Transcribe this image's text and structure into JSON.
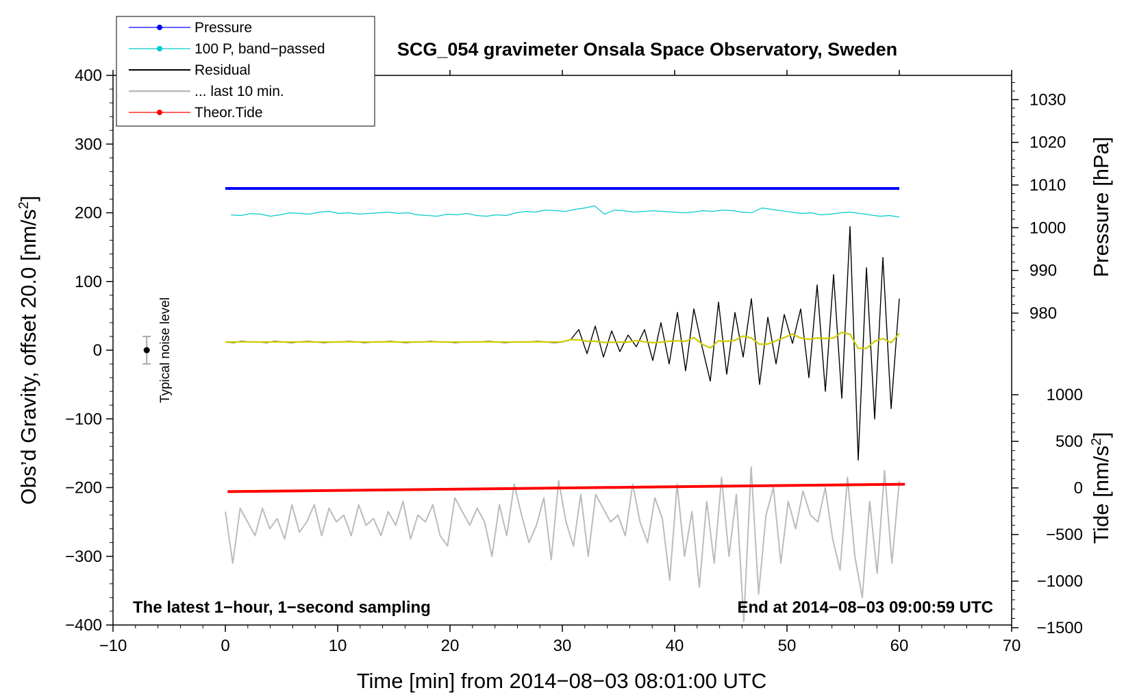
{
  "chart_data": {
    "type": "line",
    "title": "SCG_054 gravimeter Onsala Space Observatory, Sweden",
    "xlabel": "Time [min] from 2014−08−03 08:01:00 UTC",
    "ylabel_left": "Obs’d Gravity, offset 20.0 [nm/s²]",
    "ylabel_right_top": "Pressure [hPa]",
    "ylabel_right_bottom": "Tide [nm/s²]",
    "xlim": [
      -10,
      70
    ],
    "ylim_left": [
      -400,
      400
    ],
    "x_ticks": [
      -10,
      0,
      10,
      20,
      30,
      40,
      50,
      60,
      70
    ],
    "x_tick_labels": [
      "−10",
      "0",
      "10",
      "20",
      "30",
      "40",
      "50",
      "60",
      "70"
    ],
    "y_left_ticks": [
      400,
      300,
      200,
      100,
      0,
      -100,
      -200,
      -300,
      -400
    ],
    "y_left_tick_labels": [
      "400",
      "300",
      "200",
      "100",
      "0",
      "−100",
      "−200",
      "−300",
      "−400"
    ],
    "pressure_ticks": [
      1030,
      1020,
      1010,
      1000,
      990,
      980
    ],
    "pressure_tick_labels": [
      "1030",
      "1020",
      "1010",
      "1000",
      "990",
      "980"
    ],
    "tide_ticks": [
      1000,
      500,
      0,
      -500,
      -1000,
      -1500
    ],
    "tide_tick_labels": [
      "1000",
      "500",
      "0",
      "−500",
      "−1000",
      "−1500"
    ],
    "legend": [
      {
        "label": "Pressure",
        "color": "#0000ff",
        "marker": true
      },
      {
        "label": "100 P, band−passed",
        "color": "#00cccc",
        "marker": true
      },
      {
        "label": "Residual",
        "color": "#000000",
        "marker": false
      },
      {
        "label": "... last 10 min.",
        "color": "#bbbbbb",
        "marker": false
      },
      {
        "label": "Theor.Tide",
        "color": "#ff0000",
        "marker": true
      }
    ],
    "series": [
      {
        "name": "Pressure",
        "axis": "pressure_hPa",
        "color": "#0000ff",
        "x_range": [
          0,
          60
        ],
        "values": [
          1009.2,
          1009.2
        ]
      },
      {
        "name": "100 P, band−passed",
        "axis": "left",
        "color": "#00cccc",
        "x_range": [
          0.5,
          60
        ],
        "values": [
          197,
          196,
          199,
          198,
          195,
          197,
          200,
          199,
          198,
          201,
          202,
          199,
          200,
          198,
          199,
          200,
          201,
          199,
          200,
          197,
          196,
          195,
          198,
          197,
          199,
          196,
          195,
          197,
          196,
          200,
          202,
          201,
          204,
          203,
          202,
          205,
          207,
          210,
          198,
          204,
          203,
          201,
          202,
          203,
          202,
          201,
          200,
          201,
          203,
          202,
          204,
          203,
          201,
          200,
          207,
          205,
          203,
          201,
          199,
          200,
          197,
          198,
          200,
          201,
          199,
          197,
          195,
          196,
          194
        ]
      },
      {
        "name": "Residual",
        "axis": "left",
        "color": "#000000",
        "x_range": [
          0,
          60
        ],
        "values": [
          12,
          11,
          13,
          12,
          12,
          11,
          13,
          12,
          11,
          12,
          13,
          12,
          11,
          12,
          12,
          13,
          12,
          11,
          12,
          12,
          13,
          12,
          11,
          12,
          12,
          13,
          12,
          12,
          11,
          12,
          12,
          12,
          13,
          12,
          11,
          12,
          12,
          12,
          13,
          12,
          11,
          12,
          15,
          30,
          -5,
          35,
          -10,
          28,
          -2,
          22,
          5,
          30,
          -15,
          40,
          -20,
          55,
          -30,
          60,
          5,
          -45,
          70,
          -35,
          55,
          -10,
          75,
          -50,
          48,
          -20,
          52,
          10,
          60,
          -40,
          95,
          -60,
          110,
          -70,
          180,
          -160,
          120,
          -100,
          135,
          -85,
          75
        ]
      },
      {
        "name": "... last 10 min.",
        "axis": "left",
        "color": "#bbbbbb",
        "x_range": [
          0,
          60
        ],
        "values": [
          -235,
          -310,
          -230,
          -250,
          -270,
          -230,
          -260,
          -245,
          -275,
          -225,
          -265,
          -250,
          -225,
          -270,
          -230,
          -250,
          -240,
          -270,
          -225,
          -255,
          -245,
          -270,
          -235,
          -255,
          -220,
          -275,
          -240,
          -250,
          -225,
          -270,
          -285,
          -215,
          -235,
          -255,
          -230,
          -250,
          -300,
          -225,
          -270,
          -195,
          -240,
          -280,
          -255,
          -215,
          -305,
          -190,
          -250,
          -285,
          -210,
          -300,
          -210,
          -230,
          -250,
          -240,
          -270,
          -195,
          -250,
          -280,
          -215,
          -245,
          -335,
          -195,
          -300,
          -235,
          -345,
          -220,
          -310,
          -185,
          -300,
          -210,
          -395,
          -170,
          -355,
          -240,
          -200,
          -310,
          -220,
          -260,
          -205,
          -240,
          -250,
          -200,
          -275,
          -320,
          -185,
          -300,
          -360,
          -220,
          -325,
          -175,
          -310,
          -190
        ]
      },
      {
        "name": "Theor.Tide",
        "axis": "tide_nm_s2",
        "color": "#ff0000",
        "x_range": [
          0.2,
          60.5
        ],
        "values": [
          -40,
          40
        ]
      }
    ],
    "noise_marker": {
      "x": -7,
      "y": 0,
      "error": 20,
      "label": "Typical noise level"
    },
    "annotations": {
      "bottom_left": "The latest 1−hour, 1−second sampling",
      "bottom_right": "End at 2014−08−03 09:00:59 UTC"
    }
  }
}
